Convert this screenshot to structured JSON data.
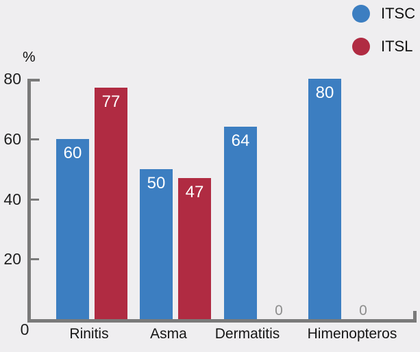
{
  "chart_data": {
    "type": "bar",
    "title": "",
    "ylabel": "%",
    "categories": [
      "Rinitis",
      "Asma",
      "Dermatitis",
      "Himenopteros"
    ],
    "series": [
      {
        "name": "ITSC",
        "color": "#3c7ec1",
        "values": [
          60,
          50,
          64,
          80
        ]
      },
      {
        "name": "ITSL",
        "color": "#b02b42",
        "values": [
          77,
          47,
          0,
          0
        ]
      }
    ],
    "yticks": [
      0,
      20,
      40,
      60,
      80
    ],
    "ylim": [
      0,
      80
    ],
    "grid": false,
    "legend_position": "top-right",
    "value_labels": {
      "positive_color": "#ffffff",
      "zero_color": "#8d8d8d"
    },
    "axis_color": "#7a7a7a",
    "background": "#efeef0"
  }
}
